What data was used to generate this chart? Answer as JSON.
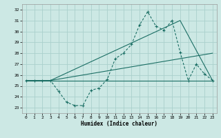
{
  "xlabel": "Humidex (Indice chaleur)",
  "bg_color": "#cce8e4",
  "grid_color": "#aad0cc",
  "line_color": "#1a6e64",
  "xlim": [
    -0.5,
    23.5
  ],
  "ylim": [
    22.5,
    32.5
  ],
  "xticks": [
    0,
    1,
    2,
    3,
    4,
    5,
    6,
    7,
    8,
    9,
    10,
    11,
    12,
    13,
    14,
    15,
    16,
    17,
    18,
    19,
    20,
    21,
    22,
    23
  ],
  "yticks": [
    23,
    24,
    25,
    26,
    27,
    28,
    29,
    30,
    31,
    32
  ],
  "series1_x": [
    0,
    1,
    2,
    3,
    4,
    5,
    6,
    7,
    8,
    9,
    10,
    11,
    12,
    13,
    14,
    15,
    16,
    17,
    18,
    19,
    20,
    21,
    22,
    23
  ],
  "series1_y": [
    25.5,
    25.5,
    25.5,
    25.5,
    24.5,
    23.5,
    23.2,
    23.2,
    24.6,
    24.8,
    25.6,
    27.5,
    28.0,
    28.8,
    30.6,
    31.8,
    30.5,
    30.1,
    31.0,
    28.1,
    25.5,
    27.0,
    26.1,
    25.5
  ],
  "series2_x": [
    0,
    3,
    23
  ],
  "series2_y": [
    25.5,
    25.5,
    25.5
  ],
  "series3_x": [
    0,
    3,
    23
  ],
  "series3_y": [
    25.5,
    25.5,
    28.0
  ],
  "series4_x": [
    0,
    3,
    19,
    23
  ],
  "series4_y": [
    25.5,
    25.5,
    31.0,
    25.5
  ]
}
